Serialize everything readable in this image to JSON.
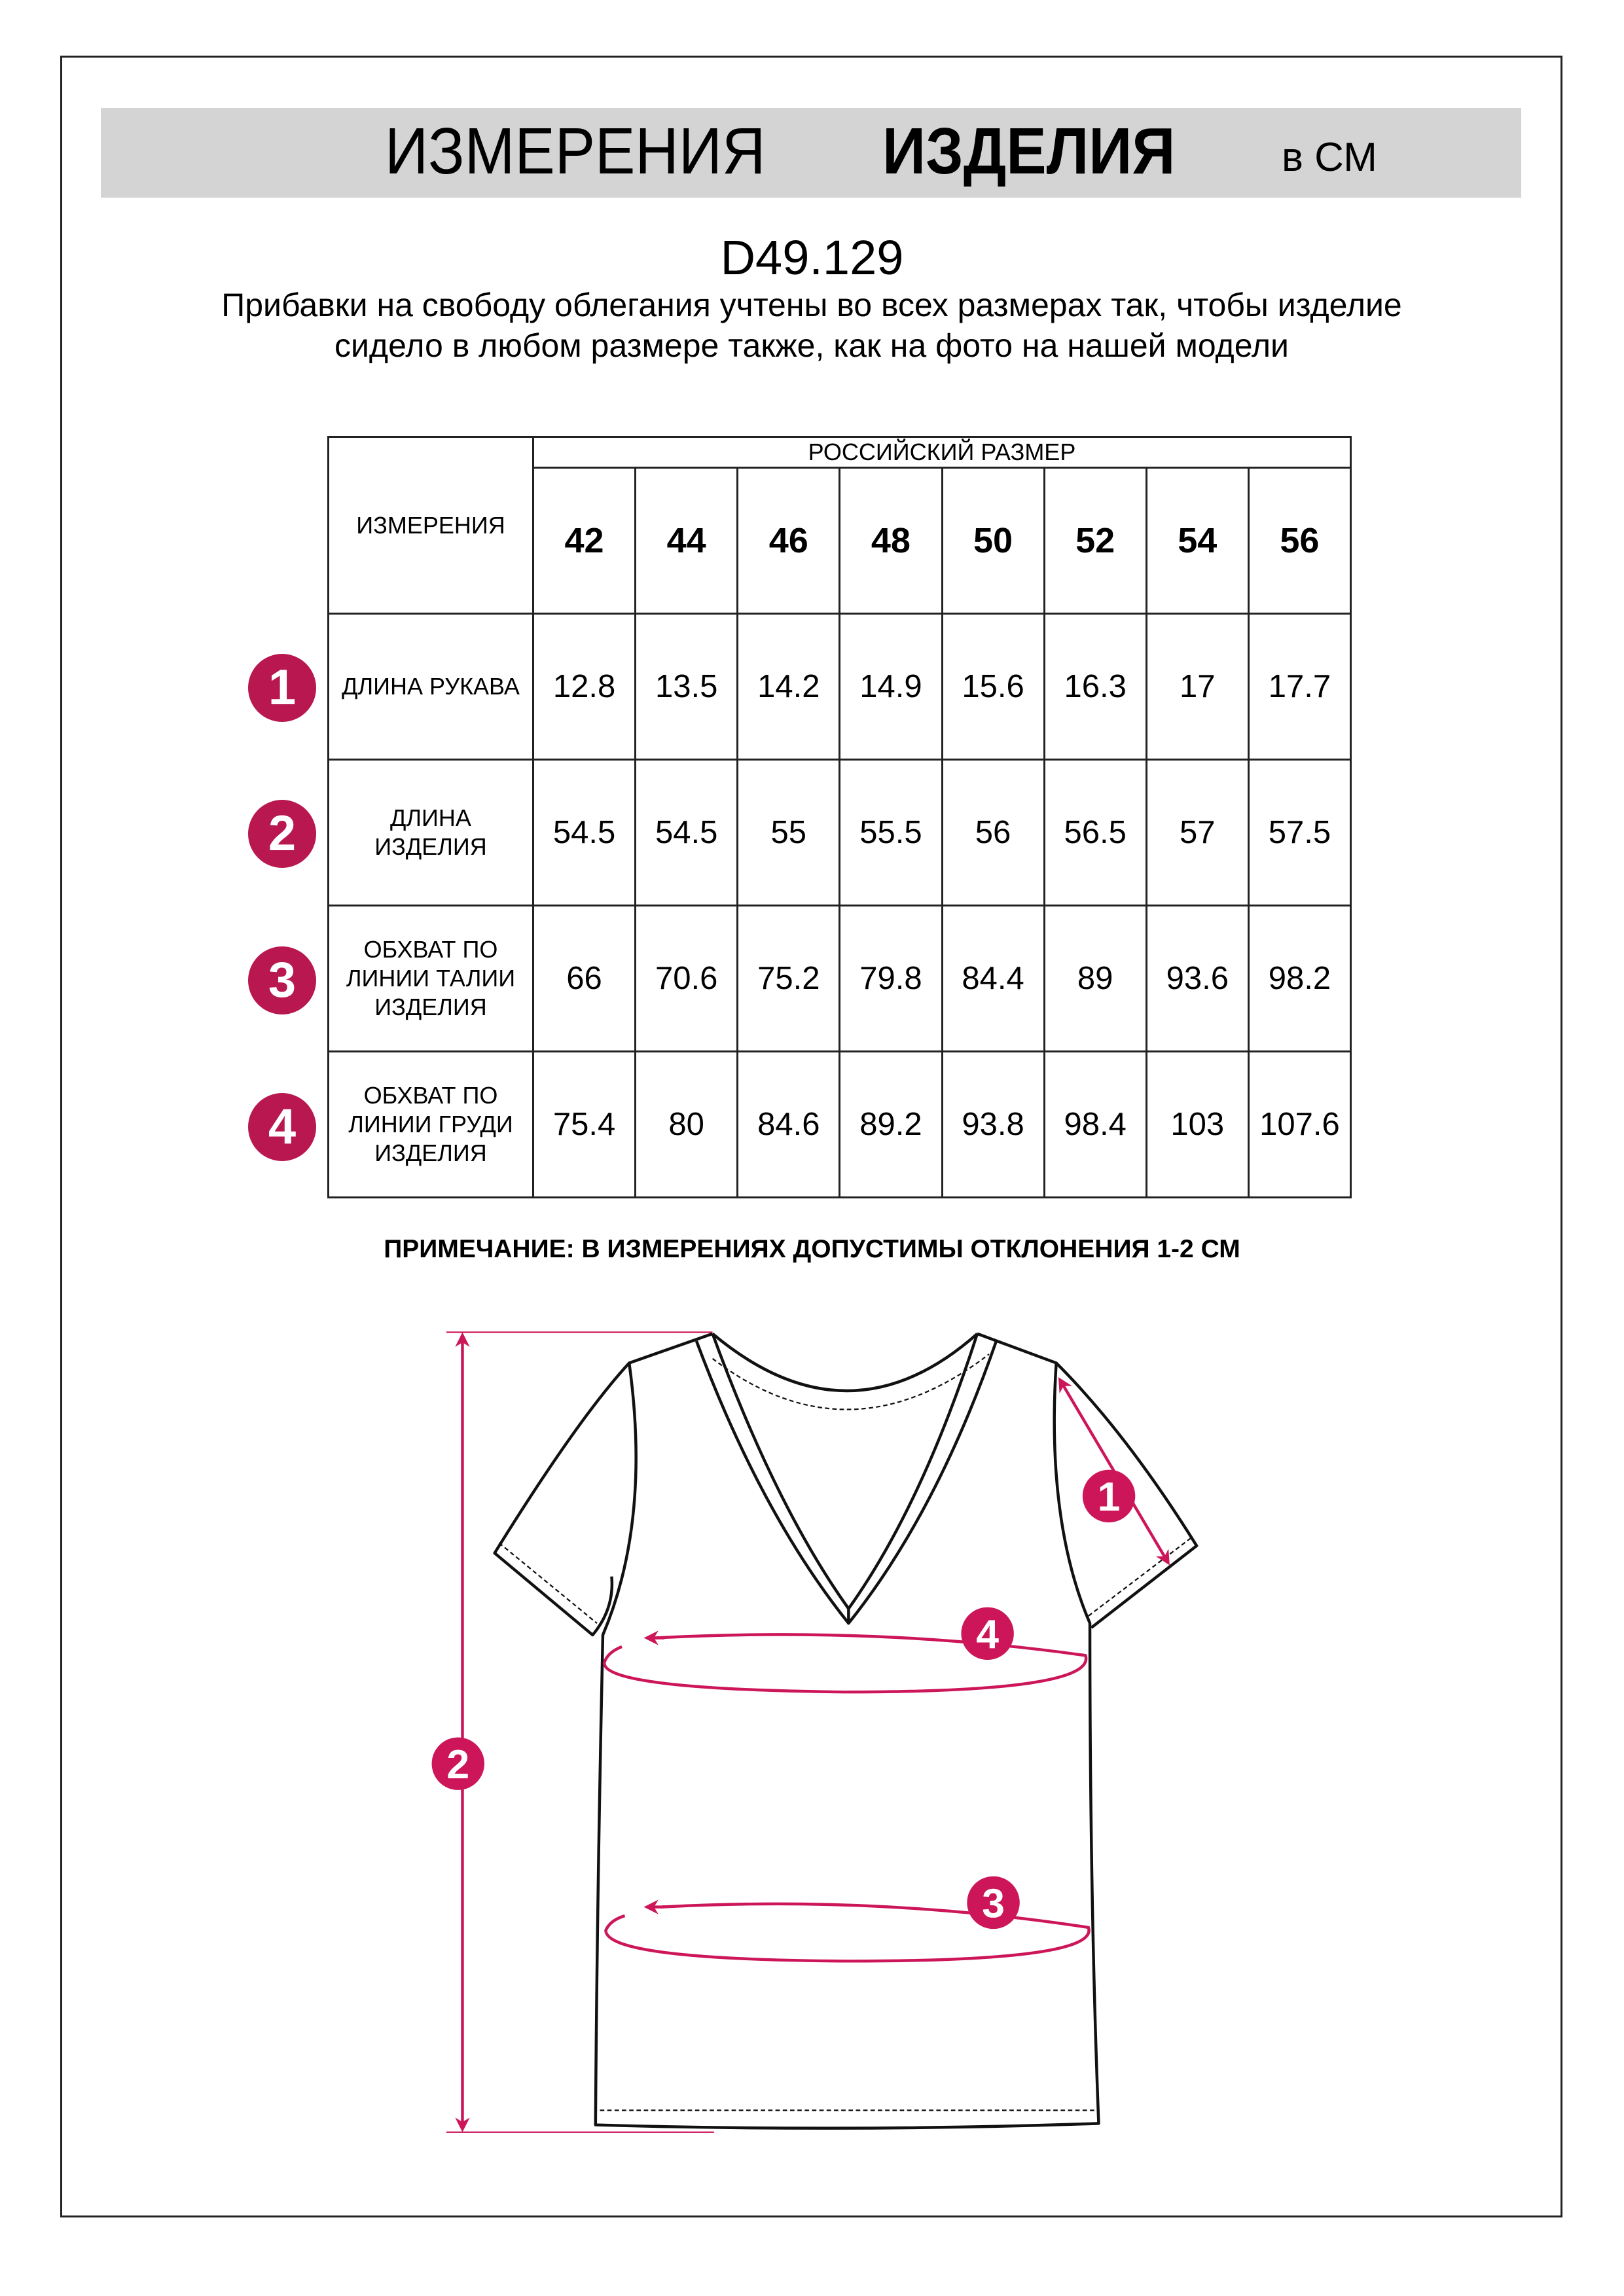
{
  "header": {
    "title_regular": "ИЗМЕРЕНИЯ",
    "title_bold": "ИЗДЕЛИЯ",
    "unit": "в СМ"
  },
  "product_code": "D49.129",
  "description": "Прибавки на свободу облегания учтены во всех размерах так, чтобы изделие сидело в любом размере также, как на фото на нашей модели",
  "table": {
    "corner_label": "ИЗМЕРЕНИЯ",
    "group_label": "РОССИЙСКИЙ РАЗМЕР",
    "sizes": [
      "42",
      "44",
      "46",
      "48",
      "50",
      "52",
      "54",
      "56"
    ],
    "rows": [
      {
        "badge": "1",
        "label": "ДЛИНА РУКАВА",
        "values": [
          "12.8",
          "13.5",
          "14.2",
          "14.9",
          "15.6",
          "16.3",
          "17",
          "17.7"
        ]
      },
      {
        "badge": "2",
        "label": "ДЛИНА ИЗДЕЛИЯ",
        "values": [
          "54.5",
          "54.5",
          "55",
          "55.5",
          "56",
          "56.5",
          "57",
          "57.5"
        ]
      },
      {
        "badge": "3",
        "label": "ОБХВАТ ПО ЛИНИИ ТАЛИИ ИЗДЕЛИЯ",
        "values": [
          "66",
          "70.6",
          "75.2",
          "79.8",
          "84.4",
          "89",
          "93.6",
          "98.2"
        ]
      },
      {
        "badge": "4",
        "label": "ОБХВАТ ПО ЛИНИИ ГРУДИ ИЗДЕЛИЯ",
        "values": [
          "75.4",
          "80",
          "84.6",
          "89.2",
          "93.8",
          "98.4",
          "103",
          "107.6"
        ]
      }
    ]
  },
  "note": "ПРИМЕЧАНИЕ: В ИЗМЕРЕНИЯХ ДОПУСТИМЫ ОТКЛОНЕНИЯ 1-2 СМ",
  "colors": {
    "badge": "#b8174f",
    "measure_line": "#cc1659",
    "banner": "#d4d4d4"
  }
}
